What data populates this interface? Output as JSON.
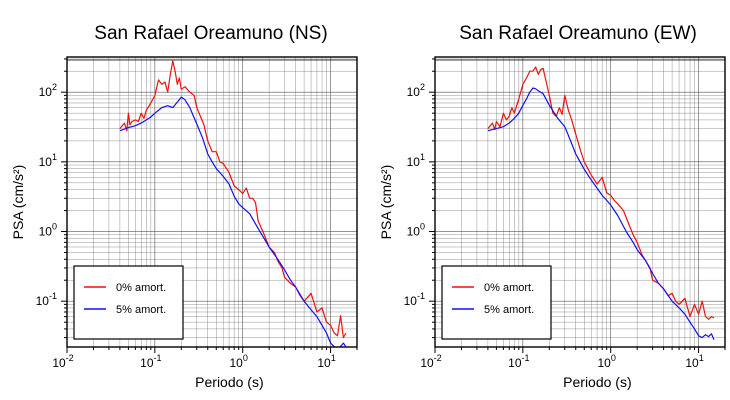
{
  "chart_data": [
    {
      "type": "line",
      "title": "San Rafael Oreamuno (NS)",
      "xlabel": "Periodo (s)",
      "ylabel": "PSA (cm/s²)",
      "xscale": "log",
      "yscale": "log",
      "xlim": [
        0.01,
        20
      ],
      "ylim": [
        0.022,
        320
      ],
      "xticks": [
        {
          "base": "10",
          "exp": "-2",
          "value": 0.01
        },
        {
          "base": "10",
          "exp": "-1",
          "value": 0.1
        },
        {
          "base": "10",
          "exp": "0",
          "value": 1
        },
        {
          "base": "10",
          "exp": "1",
          "value": 10
        }
      ],
      "yticks": [
        {
          "base": "10",
          "exp": "-1",
          "value": 0.1
        },
        {
          "base": "10",
          "exp": "0",
          "value": 1
        },
        {
          "base": "10",
          "exp": "1",
          "value": 10
        },
        {
          "base": "10",
          "exp": "2",
          "value": 100
        }
      ],
      "grid": true,
      "legend": "bottom-left",
      "series": [
        {
          "name": "0% amort.",
          "color": "#ee1111",
          "points": [
            [
              0.04,
              30
            ],
            [
              0.045,
              36
            ],
            [
              0.048,
              28
            ],
            [
              0.05,
              50
            ],
            [
              0.052,
              34
            ],
            [
              0.055,
              38
            ],
            [
              0.06,
              40
            ],
            [
              0.065,
              38
            ],
            [
              0.07,
              50
            ],
            [
              0.075,
              42
            ],
            [
              0.08,
              55
            ],
            [
              0.09,
              70
            ],
            [
              0.1,
              90
            ],
            [
              0.11,
              150
            ],
            [
              0.12,
              130
            ],
            [
              0.13,
              140
            ],
            [
              0.14,
              100
            ],
            [
              0.15,
              180
            ],
            [
              0.16,
              280
            ],
            [
              0.17,
              200
            ],
            [
              0.18,
              130
            ],
            [
              0.19,
              160
            ],
            [
              0.2,
              110
            ],
            [
              0.22,
              120
            ],
            [
              0.25,
              100
            ],
            [
              0.28,
              90
            ],
            [
              0.3,
              60
            ],
            [
              0.33,
              45
            ],
            [
              0.36,
              35
            ],
            [
              0.4,
              20
            ],
            [
              0.45,
              14
            ],
            [
              0.5,
              14
            ],
            [
              0.55,
              10
            ],
            [
              0.6,
              9.5
            ],
            [
              0.7,
              7
            ],
            [
              0.8,
              4.5
            ],
            [
              0.9,
              4.0
            ],
            [
              1.0,
              3.5
            ],
            [
              1.1,
              4.2
            ],
            [
              1.2,
              3.0
            ],
            [
              1.3,
              3.0
            ],
            [
              1.4,
              2.6
            ],
            [
              1.5,
              1.4
            ],
            [
              1.7,
              1.0
            ],
            [
              2.0,
              0.6
            ],
            [
              2.3,
              0.5
            ],
            [
              2.5,
              0.38
            ],
            [
              2.8,
              0.3
            ],
            [
              3.0,
              0.22
            ],
            [
              3.5,
              0.18
            ],
            [
              4.0,
              0.16
            ],
            [
              4.5,
              0.12
            ],
            [
              5.0,
              0.1
            ],
            [
              6.0,
              0.13
            ],
            [
              7.0,
              0.07
            ],
            [
              8.0,
              0.08
            ],
            [
              9.0,
              0.05
            ],
            [
              10,
              0.045
            ],
            [
              11,
              0.035
            ],
            [
              12,
              0.032
            ],
            [
              13,
              0.062
            ],
            [
              14,
              0.03
            ],
            [
              15,
              0.035
            ]
          ]
        },
        {
          "name": "5% amort.",
          "color": "#1111ee",
          "points": [
            [
              0.04,
              28
            ],
            [
              0.05,
              31
            ],
            [
              0.06,
              33
            ],
            [
              0.07,
              36
            ],
            [
              0.08,
              40
            ],
            [
              0.09,
              44
            ],
            [
              0.1,
              50
            ],
            [
              0.12,
              60
            ],
            [
              0.14,
              64
            ],
            [
              0.16,
              60
            ],
            [
              0.18,
              72
            ],
            [
              0.2,
              85
            ],
            [
              0.22,
              78
            ],
            [
              0.25,
              60
            ],
            [
              0.3,
              35
            ],
            [
              0.35,
              22
            ],
            [
              0.4,
              13
            ],
            [
              0.45,
              10
            ],
            [
              0.5,
              8
            ],
            [
              0.6,
              6.2
            ],
            [
              0.7,
              4.8
            ],
            [
              0.8,
              3.2
            ],
            [
              0.9,
              2.5
            ],
            [
              1.0,
              2.2
            ],
            [
              1.2,
              1.8
            ],
            [
              1.5,
              1.1
            ],
            [
              1.8,
              0.75
            ],
            [
              2.0,
              0.6
            ],
            [
              2.5,
              0.4
            ],
            [
              3.0,
              0.28
            ],
            [
              3.5,
              0.2
            ],
            [
              4.0,
              0.16
            ],
            [
              5.0,
              0.1
            ],
            [
              6.0,
              0.075
            ],
            [
              7.0,
              0.06
            ],
            [
              8.0,
              0.045
            ],
            [
              9.0,
              0.035
            ],
            [
              10,
              0.025
            ],
            [
              12,
              0.02
            ],
            [
              14,
              0.025
            ],
            [
              15,
              0.022
            ]
          ]
        }
      ]
    },
    {
      "type": "line",
      "title": "San Rafael Oreamuno (EW)",
      "xlabel": "Periodo (s)",
      "ylabel": "PSA (cm/s²)",
      "xscale": "log",
      "yscale": "log",
      "xlim": [
        0.01,
        20
      ],
      "ylim": [
        0.022,
        320
      ],
      "xticks": [
        {
          "base": "10",
          "exp": "-2",
          "value": 0.01
        },
        {
          "base": "10",
          "exp": "-1",
          "value": 0.1
        },
        {
          "base": "10",
          "exp": "0",
          "value": 1
        },
        {
          "base": "10",
          "exp": "1",
          "value": 10
        }
      ],
      "yticks": [
        {
          "base": "10",
          "exp": "-1",
          "value": 0.1
        },
        {
          "base": "10",
          "exp": "0",
          "value": 1
        },
        {
          "base": "10",
          "exp": "1",
          "value": 10
        },
        {
          "base": "10",
          "exp": "2",
          "value": 100
        }
      ],
      "grid": true,
      "legend": "bottom-left",
      "series": [
        {
          "name": "0% amort.",
          "color": "#ee1111",
          "points": [
            [
              0.04,
              30
            ],
            [
              0.045,
              36
            ],
            [
              0.048,
              29
            ],
            [
              0.05,
              38
            ],
            [
              0.055,
              32
            ],
            [
              0.06,
              50
            ],
            [
              0.065,
              40
            ],
            [
              0.07,
              45
            ],
            [
              0.075,
              60
            ],
            [
              0.08,
              50
            ],
            [
              0.09,
              80
            ],
            [
              0.1,
              130
            ],
            [
              0.11,
              160
            ],
            [
              0.12,
              200
            ],
            [
              0.13,
              200
            ],
            [
              0.14,
              230
            ],
            [
              0.15,
              180
            ],
            [
              0.16,
              210
            ],
            [
              0.17,
              220
            ],
            [
              0.18,
              160
            ],
            [
              0.2,
              90
            ],
            [
              0.22,
              50
            ],
            [
              0.24,
              45
            ],
            [
              0.26,
              60
            ],
            [
              0.28,
              48
            ],
            [
              0.3,
              90
            ],
            [
              0.33,
              55
            ],
            [
              0.36,
              40
            ],
            [
              0.4,
              25
            ],
            [
              0.45,
              15
            ],
            [
              0.5,
              10
            ],
            [
              0.6,
              6.5
            ],
            [
              0.7,
              4.8
            ],
            [
              0.8,
              6.0
            ],
            [
              0.9,
              3.6
            ],
            [
              1.0,
              3.3
            ],
            [
              1.1,
              2.8
            ],
            [
              1.2,
              2.5
            ],
            [
              1.4,
              2.0
            ],
            [
              1.6,
              1.3
            ],
            [
              1.8,
              0.9
            ],
            [
              2.0,
              0.7
            ],
            [
              2.3,
              0.45
            ],
            [
              2.5,
              0.38
            ],
            [
              2.8,
              0.3
            ],
            [
              3.0,
              0.2
            ],
            [
              3.5,
              0.18
            ],
            [
              4.0,
              0.15
            ],
            [
              4.5,
              0.12
            ],
            [
              5.0,
              0.13
            ],
            [
              5.5,
              0.1
            ],
            [
              6.0,
              0.09
            ],
            [
              7.0,
              0.11
            ],
            [
              8.0,
              0.06
            ],
            [
              9.0,
              0.09
            ],
            [
              10,
              0.065
            ],
            [
              11,
              0.1
            ],
            [
              12,
              0.06
            ],
            [
              13,
              0.055
            ],
            [
              14,
              0.06
            ],
            [
              15,
              0.058
            ]
          ]
        },
        {
          "name": "5% amort.",
          "color": "#1111ee",
          "points": [
            [
              0.04,
              28
            ],
            [
              0.05,
              30
            ],
            [
              0.06,
              32
            ],
            [
              0.07,
              36
            ],
            [
              0.08,
              42
            ],
            [
              0.09,
              50
            ],
            [
              0.1,
              65
            ],
            [
              0.11,
              80
            ],
            [
              0.12,
              100
            ],
            [
              0.13,
              115
            ],
            [
              0.14,
              112
            ],
            [
              0.15,
              105
            ],
            [
              0.17,
              95
            ],
            [
              0.2,
              65
            ],
            [
              0.25,
              42
            ],
            [
              0.3,
              32
            ],
            [
              0.35,
              20
            ],
            [
              0.4,
              13
            ],
            [
              0.45,
              10
            ],
            [
              0.5,
              7.8
            ],
            [
              0.6,
              5.5
            ],
            [
              0.7,
              4.2
            ],
            [
              0.8,
              3.3
            ],
            [
              0.9,
              2.8
            ],
            [
              1.0,
              2.4
            ],
            [
              1.2,
              1.7
            ],
            [
              1.5,
              1.0
            ],
            [
              1.8,
              0.7
            ],
            [
              2.0,
              0.55
            ],
            [
              2.5,
              0.38
            ],
            [
              3.0,
              0.25
            ],
            [
              3.5,
              0.18
            ],
            [
              4.0,
              0.15
            ],
            [
              5.0,
              0.1
            ],
            [
              6.0,
              0.08
            ],
            [
              7.0,
              0.065
            ],
            [
              8.0,
              0.05
            ],
            [
              9.0,
              0.04
            ],
            [
              10,
              0.032
            ],
            [
              11,
              0.03
            ],
            [
              12,
              0.033
            ],
            [
              13,
              0.031
            ],
            [
              14,
              0.034
            ],
            [
              15,
              0.028
            ]
          ]
        }
      ]
    }
  ]
}
